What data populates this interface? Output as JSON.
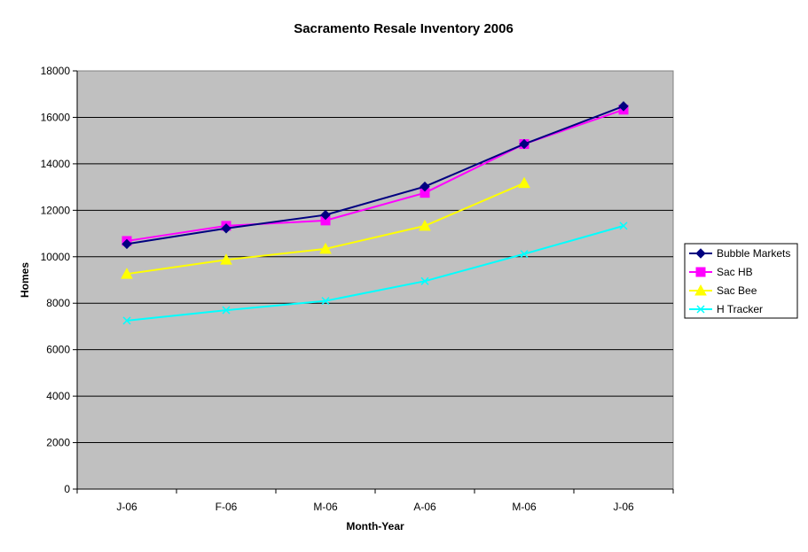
{
  "chart_data": {
    "type": "line",
    "title": "Sacramento Resale Inventory 2006",
    "xlabel": "Month-Year",
    "ylabel": "Homes",
    "categories": [
      "J-06",
      "F-06",
      "M-06",
      "A-06",
      "M-06",
      "J-06"
    ],
    "ylim": [
      0,
      18000
    ],
    "yticks": [
      0,
      2000,
      4000,
      6000,
      8000,
      10000,
      12000,
      14000,
      16000,
      18000
    ],
    "grid": "horizontal",
    "plot_background": "#c0c0c0",
    "legend_position": "right",
    "series": [
      {
        "name": "Bubble Markets",
        "color": "#000080",
        "marker": "diamond",
        "values": [
          10550,
          11220,
          11800,
          13020,
          14850,
          16480
        ]
      },
      {
        "name": "Sac HB",
        "color": "#ff00ff",
        "marker": "square",
        "values": [
          10680,
          11330,
          11560,
          12750,
          14850,
          16330
        ]
      },
      {
        "name": "Sac Bee",
        "color": "#ffff00",
        "marker": "triangle",
        "values": [
          9260,
          9870,
          10340,
          11330,
          13170,
          null
        ]
      },
      {
        "name": "H Tracker",
        "color": "#00ffff",
        "marker": "x",
        "values": [
          7250,
          7700,
          8100,
          8950,
          10120,
          11330
        ]
      }
    ]
  }
}
